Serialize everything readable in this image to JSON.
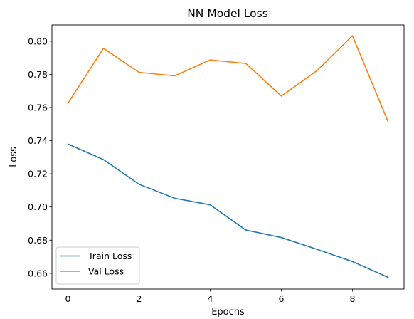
{
  "chart_data": {
    "type": "line",
    "title": "NN Model Loss",
    "xlabel": "Epochs",
    "ylabel": "Loss",
    "x": [
      0,
      1,
      2,
      3,
      4,
      5,
      6,
      7,
      8,
      9
    ],
    "xlim": [
      -0.45,
      9.45
    ],
    "ylim": [
      0.6505,
      0.8098
    ],
    "xticks": [
      0,
      2,
      4,
      6,
      8
    ],
    "yticks": [
      0.66,
      0.68,
      0.7,
      0.72,
      0.74,
      0.76,
      0.78,
      0.8
    ],
    "ytick_labels": [
      "0.66",
      "0.68",
      "0.70",
      "0.72",
      "0.74",
      "0.76",
      "0.78",
      "0.80"
    ],
    "grid": false,
    "legend_position": "lower-left",
    "series": [
      {
        "name": "Train Loss",
        "color": "#1f77b4",
        "values": [
          0.738,
          0.7286,
          0.7137,
          0.7053,
          0.7013,
          0.6861,
          0.6816,
          0.6745,
          0.6671,
          0.6576
        ]
      },
      {
        "name": "Val Loss",
        "color": "#ff7f0e",
        "values": [
          0.7626,
          0.7957,
          0.7812,
          0.7791,
          0.7887,
          0.7866,
          0.7669,
          0.7822,
          0.8033,
          0.7515
        ]
      }
    ]
  }
}
